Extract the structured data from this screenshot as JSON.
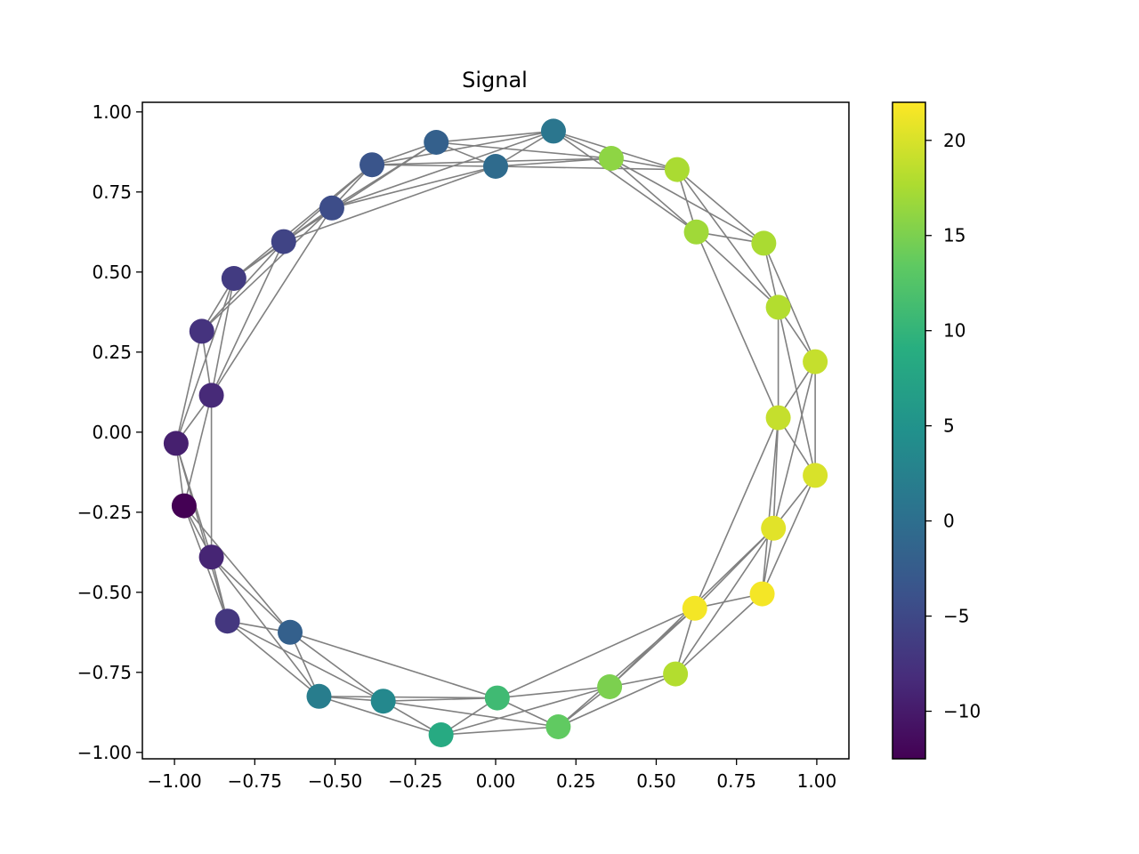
{
  "chart_data": {
    "type": "scatter",
    "title": "Signal",
    "xlabel": "",
    "ylabel": "",
    "xlim": [
      -1.1,
      1.1
    ],
    "ylim": [
      -1.02,
      1.03
    ],
    "grid": false,
    "x_ticks": [
      -1.0,
      -0.75,
      -0.5,
      -0.25,
      0.0,
      0.25,
      0.5,
      0.75,
      1.0
    ],
    "x_tick_labels": [
      "−1.00",
      "−0.75",
      "−0.50",
      "−0.25",
      "0.00",
      "0.25",
      "0.50",
      "0.75",
      "1.00"
    ],
    "y_ticks": [
      1.0,
      0.75,
      0.5,
      0.25,
      0.0,
      -0.25,
      -0.5,
      -0.75,
      -1.0
    ],
    "y_tick_labels": [
      "1.00",
      "0.75",
      "0.50",
      "0.25",
      "0.00",
      "−0.25",
      "−0.50",
      "−0.75",
      "−1.00"
    ],
    "edge_color": "#808080",
    "colormap": "viridis",
    "colorbar": {
      "min": -12.5,
      "max": 22,
      "ticks": [
        20,
        15,
        10,
        5,
        0,
        -5,
        -10
      ],
      "tick_labels": [
        "20",
        "15",
        "10",
        "5",
        "0",
        "−5",
        "−10"
      ]
    },
    "nodes": [
      {
        "x": 0.18,
        "y": 0.94,
        "value": 1
      },
      {
        "x": 0.36,
        "y": 0.855,
        "value": 16
      },
      {
        "x": 0.565,
        "y": 0.82,
        "value": 17.5
      },
      {
        "x": 0.625,
        "y": 0.625,
        "value": 17
      },
      {
        "x": 0.835,
        "y": 0.59,
        "value": 17.5
      },
      {
        "x": 0.88,
        "y": 0.39,
        "value": 18
      },
      {
        "x": 0.995,
        "y": 0.22,
        "value": 19
      },
      {
        "x": 0.88,
        "y": 0.045,
        "value": 19
      },
      {
        "x": 0.995,
        "y": -0.135,
        "value": 20
      },
      {
        "x": 0.865,
        "y": -0.3,
        "value": 20.5
      },
      {
        "x": 0.83,
        "y": -0.505,
        "value": 21.5
      },
      {
        "x": 0.62,
        "y": -0.55,
        "value": 21.5
      },
      {
        "x": 0.56,
        "y": -0.755,
        "value": 18
      },
      {
        "x": 0.355,
        "y": -0.795,
        "value": 15
      },
      {
        "x": 0.195,
        "y": -0.92,
        "value": 13.5
      },
      {
        "x": 0.005,
        "y": -0.83,
        "value": 11
      },
      {
        "x": -0.17,
        "y": -0.945,
        "value": 8.5
      },
      {
        "x": -0.35,
        "y": -0.84,
        "value": 3.5
      },
      {
        "x": -0.55,
        "y": -0.825,
        "value": 2
      },
      {
        "x": -0.64,
        "y": -0.625,
        "value": -2
      },
      {
        "x": -0.835,
        "y": -0.59,
        "value": -7
      },
      {
        "x": -0.885,
        "y": -0.39,
        "value": -9
      },
      {
        "x": -0.97,
        "y": -0.23,
        "value": -12.5
      },
      {
        "x": -0.995,
        "y": -0.035,
        "value": -9.5
      },
      {
        "x": -0.885,
        "y": 0.115,
        "value": -8.5
      },
      {
        "x": -0.915,
        "y": 0.315,
        "value": -7.5
      },
      {
        "x": -0.815,
        "y": 0.48,
        "value": -6.5
      },
      {
        "x": -0.66,
        "y": 0.595,
        "value": -5.5
      },
      {
        "x": -0.51,
        "y": 0.7,
        "value": -4.5
      },
      {
        "x": -0.385,
        "y": 0.835,
        "value": -3.5
      },
      {
        "x": -0.185,
        "y": 0.905,
        "value": -2
      },
      {
        "x": 0.0,
        "y": 0.83,
        "value": -0.5
      }
    ],
    "edges": [
      [
        0,
        1
      ],
      [
        0,
        2
      ],
      [
        0,
        30
      ],
      [
        0,
        31
      ],
      [
        0,
        29
      ],
      [
        0,
        28
      ],
      [
        0,
        3
      ],
      [
        1,
        2
      ],
      [
        1,
        3
      ],
      [
        1,
        31
      ],
      [
        1,
        30
      ],
      [
        1,
        29
      ],
      [
        1,
        4
      ],
      [
        2,
        3
      ],
      [
        2,
        4
      ],
      [
        2,
        5
      ],
      [
        2,
        31
      ],
      [
        3,
        4
      ],
      [
        3,
        5
      ],
      [
        3,
        7
      ],
      [
        4,
        5
      ],
      [
        4,
        6
      ],
      [
        5,
        6
      ],
      [
        5,
        7
      ],
      [
        5,
        8
      ],
      [
        6,
        7
      ],
      [
        6,
        8
      ],
      [
        6,
        9
      ],
      [
        7,
        8
      ],
      [
        7,
        9
      ],
      [
        7,
        10
      ],
      [
        7,
        11
      ],
      [
        8,
        9
      ],
      [
        8,
        10
      ],
      [
        9,
        10
      ],
      [
        9,
        11
      ],
      [
        9,
        12
      ],
      [
        9,
        13
      ],
      [
        10,
        11
      ],
      [
        10,
        12
      ],
      [
        11,
        12
      ],
      [
        11,
        13
      ],
      [
        11,
        14
      ],
      [
        11,
        15
      ],
      [
        12,
        13
      ],
      [
        12,
        14
      ],
      [
        13,
        14
      ],
      [
        13,
        15
      ],
      [
        13,
        16
      ],
      [
        14,
        15
      ],
      [
        14,
        16
      ],
      [
        14,
        17
      ],
      [
        15,
        16
      ],
      [
        15,
        17
      ],
      [
        15,
        18
      ],
      [
        15,
        19
      ],
      [
        16,
        17
      ],
      [
        16,
        18
      ],
      [
        17,
        18
      ],
      [
        17,
        19
      ],
      [
        17,
        20
      ],
      [
        18,
        19
      ],
      [
        18,
        20
      ],
      [
        18,
        21
      ],
      [
        19,
        20
      ],
      [
        19,
        21
      ],
      [
        19,
        22
      ],
      [
        20,
        21
      ],
      [
        20,
        22
      ],
      [
        20,
        23
      ],
      [
        21,
        22
      ],
      [
        21,
        23
      ],
      [
        21,
        24
      ],
      [
        22,
        23
      ],
      [
        22,
        24
      ],
      [
        23,
        24
      ],
      [
        23,
        25
      ],
      [
        23,
        26
      ],
      [
        24,
        25
      ],
      [
        24,
        26
      ],
      [
        24,
        27
      ],
      [
        24,
        28
      ],
      [
        25,
        26
      ],
      [
        25,
        27
      ],
      [
        25,
        28
      ],
      [
        26,
        27
      ],
      [
        26,
        28
      ],
      [
        26,
        29
      ],
      [
        27,
        28
      ],
      [
        27,
        29
      ],
      [
        27,
        30
      ],
      [
        27,
        31
      ],
      [
        28,
        29
      ],
      [
        28,
        30
      ],
      [
        28,
        31
      ],
      [
        29,
        30
      ],
      [
        29,
        31
      ],
      [
        30,
        31
      ]
    ]
  }
}
